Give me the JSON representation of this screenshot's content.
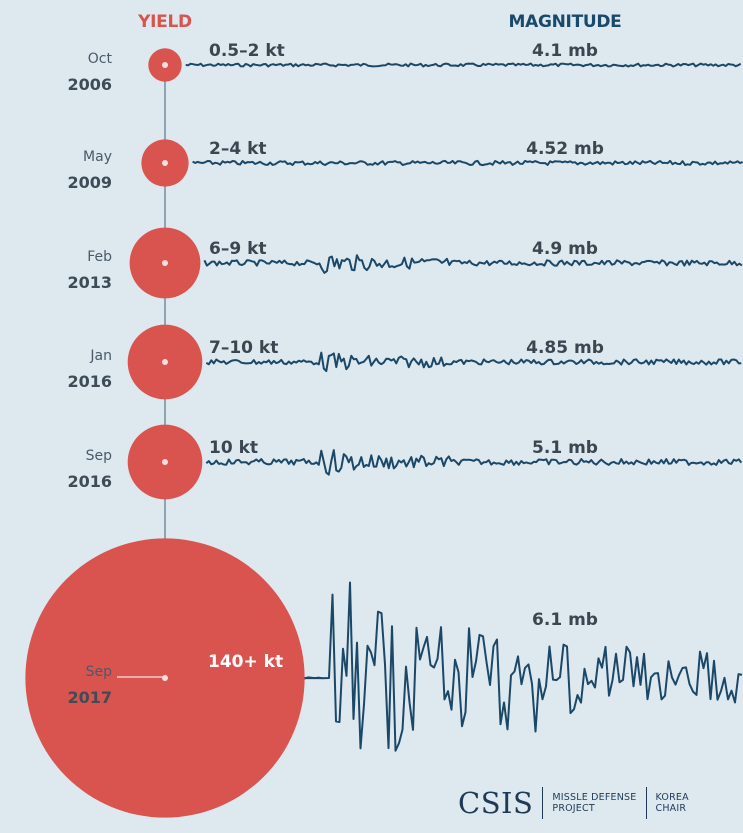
{
  "colors": {
    "background": "#dde8ef",
    "yield_red": "#d9534f",
    "magnitude_blue": "#1a4a6b",
    "wave": "#1c4868",
    "connector": "#8fa4b2"
  },
  "headers": {
    "yield": "YIELD",
    "magnitude": "MAGNITUDE"
  },
  "chart_data": {
    "type": "bubble-timeline",
    "series_headers": [
      "YIELD",
      "MAGNITUDE"
    ],
    "events": [
      {
        "month": "Oct",
        "year": "2006",
        "yield_label": "0.5–2 kt",
        "yield_kt": 2,
        "magnitude_label": "4.1 mb",
        "magnitude": 4.1
      },
      {
        "month": "May",
        "year": "2009",
        "yield_label": "2–4 kt",
        "yield_kt": 4,
        "magnitude_label": "4.52 mb",
        "magnitude": 4.52
      },
      {
        "month": "Feb",
        "year": "2013",
        "yield_label": "6–9 kt",
        "yield_kt": 9,
        "magnitude_label": "4.9 mb",
        "magnitude": 4.9
      },
      {
        "month": "Jan",
        "year": "2016",
        "yield_label": "7–10 kt",
        "yield_kt": 10,
        "magnitude_label": "4.85 mb",
        "magnitude": 4.85
      },
      {
        "month": "Sep",
        "year": "2016",
        "yield_label": "10 kt",
        "yield_kt": 10,
        "magnitude_label": "5.1 mb",
        "magnitude": 5.1
      },
      {
        "month": "Sep",
        "year": "2017",
        "yield_label": "140+ kt",
        "yield_kt": 140,
        "magnitude_label": "6.1 mb",
        "magnitude": 6.1
      }
    ]
  },
  "logo": {
    "name": "CSIS",
    "unit1": "MISSLE DEFENSE\nPROJECT",
    "unit2": "KOREA\nCHAIR"
  }
}
